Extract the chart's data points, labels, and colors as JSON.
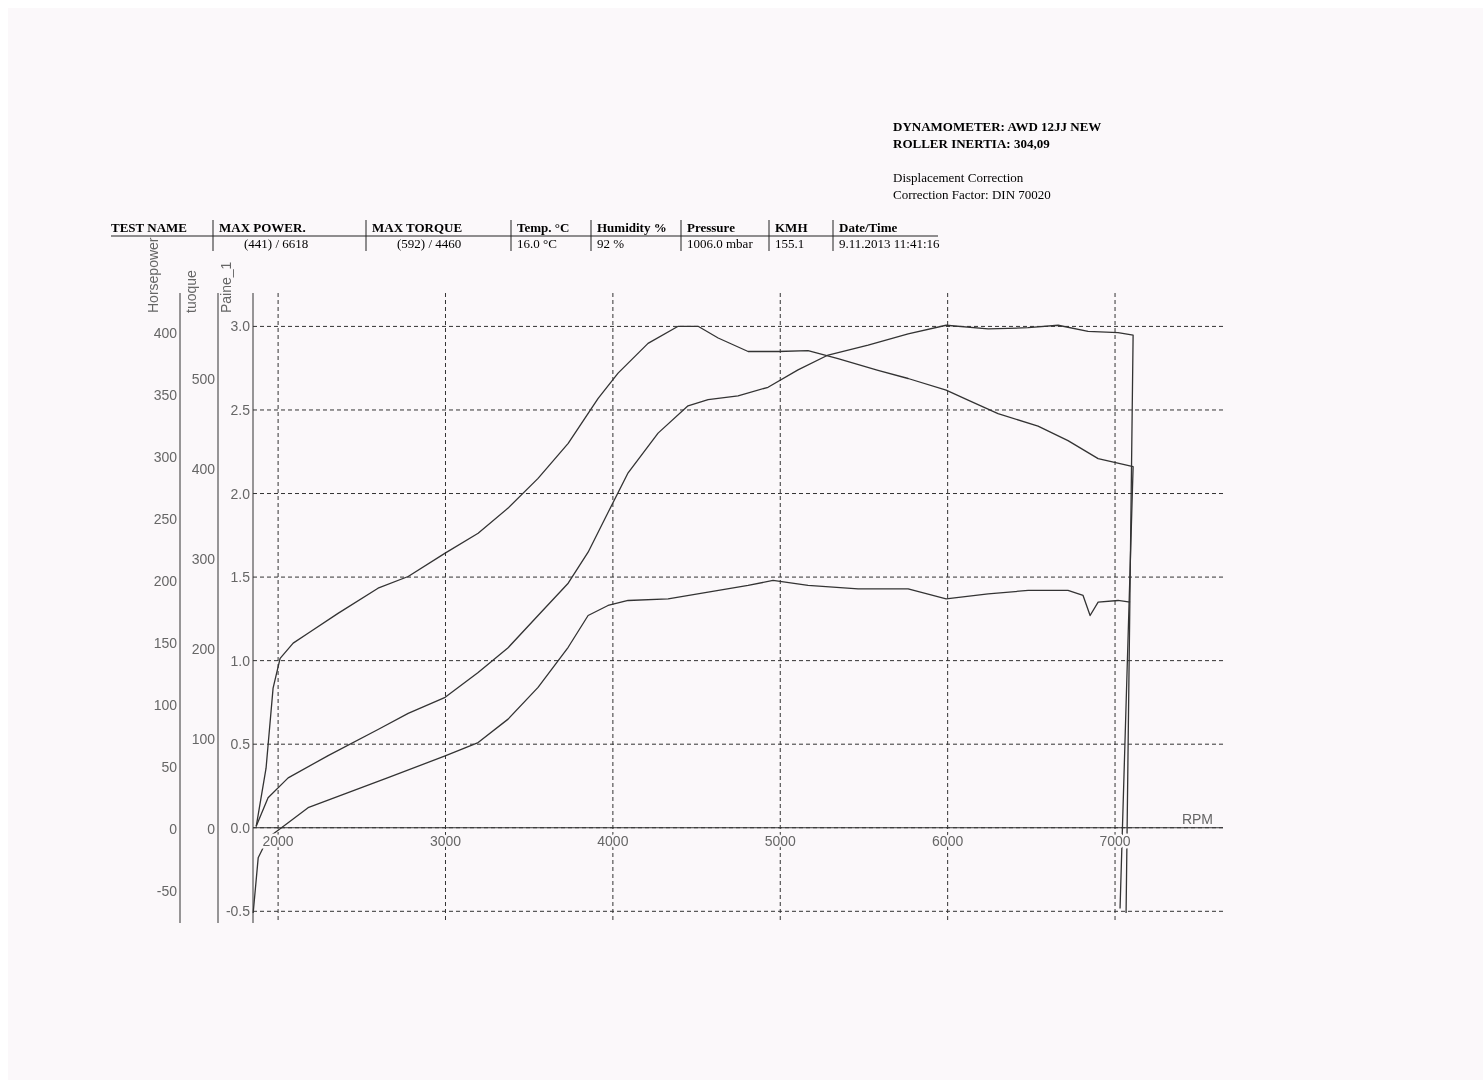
{
  "chart_data": {
    "type": "line",
    "xlabel": "RPM",
    "ylabel": "Horsepower",
    "y2label": "tuoque",
    "y3label": "Paine_1",
    "xlim": [
      1850,
      7645
    ],
    "xticks": [
      2000,
      3000,
      4000,
      5000,
      6000,
      7000
    ],
    "ylim": [
      -76,
      432
    ],
    "yticks": [
      -50,
      0,
      50,
      100,
      150,
      200,
      250,
      300,
      350,
      400
    ],
    "y2lim": [
      -104,
      596
    ],
    "y2ticks": [
      0,
      100,
      200,
      300,
      400,
      500
    ],
    "y3lim": [
      -0.57,
      3.2
    ],
    "y3ticks": [
      {
        "value": -0.5,
        "label": "-0.5"
      },
      {
        "value": 0,
        "label": "0.0"
      },
      {
        "value": 0.5,
        "label": "0.5"
      },
      {
        "value": 1,
        "label": "1.0"
      },
      {
        "value": 1.5,
        "label": "1.5"
      },
      {
        "value": 2,
        "label": "2.0"
      },
      {
        "value": 2.5,
        "label": "2.5"
      },
      {
        "value": 3,
        "label": "3.0"
      }
    ],
    "grid": true,
    "line_style": "solid",
    "marker": "none",
    "annotations": [
      "DYNAMOMETER: AWD 12JJ NEW",
      "ROLLER INERTIA:  304,09",
      "Displacement Correction",
      "Correction Factor: DIN 70020",
      "TEST NAME",
      "MAX POWER.",
      "MAX TORQUE",
      "Temp. °C",
      "Humidity %",
      "Pressure",
      "KMH",
      "Date/Time",
      "(441) / 6618",
      "(592) / 4460",
      "16.0 °C",
      "92 %",
      "1006.0 mbar",
      "155.1",
      "9.11.2013 11:41:16"
    ],
    "series": [
      {
        "type": "line",
        "axis": "y2",
        "color": "#333333",
        "x": [
          1869,
          1928,
          1970,
          2012,
          2090,
          2179,
          2358,
          2597,
          2777,
          2998,
          3195,
          3374,
          3553,
          3733,
          3912,
          4031,
          4210,
          4390,
          4509,
          4629,
          4808,
          4987,
          5166,
          5345,
          5584,
          5764,
          5991,
          6122,
          6301,
          6540,
          6719,
          6899,
          7108,
          7030
        ],
        "values": [
          3,
          68,
          157,
          190,
          207,
          218,
          240,
          268,
          281,
          307,
          329,
          357,
          390,
          429,
          479,
          507,
          540,
          559,
          559,
          546,
          531,
          531,
          532,
          523,
          510,
          501,
          488,
          477,
          462,
          448,
          432,
          412,
          403,
          -88
        ]
      },
      {
        "type": "line",
        "axis": "y",
        "color": "#333333",
        "x": [
          1869,
          1940,
          2060,
          2299,
          2597,
          2777,
          2998,
          3195,
          3374,
          3553,
          3733,
          3852,
          3971,
          4091,
          4270,
          4449,
          4569,
          4748,
          4927,
          5106,
          5286,
          5525,
          5764,
          5991,
          6242,
          6481,
          6660,
          6839,
          7018,
          7108,
          7066
        ],
        "values": [
          2,
          25,
          41,
          59,
          80,
          93,
          106,
          126,
          146,
          172,
          198,
          223,
          255,
          287,
          319,
          341,
          346,
          349,
          356,
          370,
          382,
          390,
          399,
          406,
          403,
          404,
          406,
          401,
          400,
          398,
          -68
        ]
      },
      {
        "type": "line",
        "axis": "y3",
        "color": "#333333",
        "x": [
          1851,
          1881,
          1940,
          2060,
          2179,
          2418,
          2657,
          2998,
          3195,
          3374,
          3553,
          3733,
          3852,
          3971,
          4091,
          4330,
          4569,
          4808,
          4957,
          5166,
          5465,
          5764,
          5991,
          6242,
          6481,
          6719,
          6809,
          6851,
          6899,
          7018,
          7090
        ],
        "values": [
          -0.51,
          -0.18,
          -0.06,
          0.03,
          0.12,
          0.21,
          0.3,
          0.43,
          0.51,
          0.65,
          0.84,
          1.08,
          1.27,
          1.33,
          1.36,
          1.37,
          1.41,
          1.45,
          1.48,
          1.45,
          1.43,
          1.43,
          1.37,
          1.4,
          1.42,
          1.42,
          1.39,
          1.27,
          1.35,
          1.36,
          1.35
        ]
      }
    ]
  }
}
